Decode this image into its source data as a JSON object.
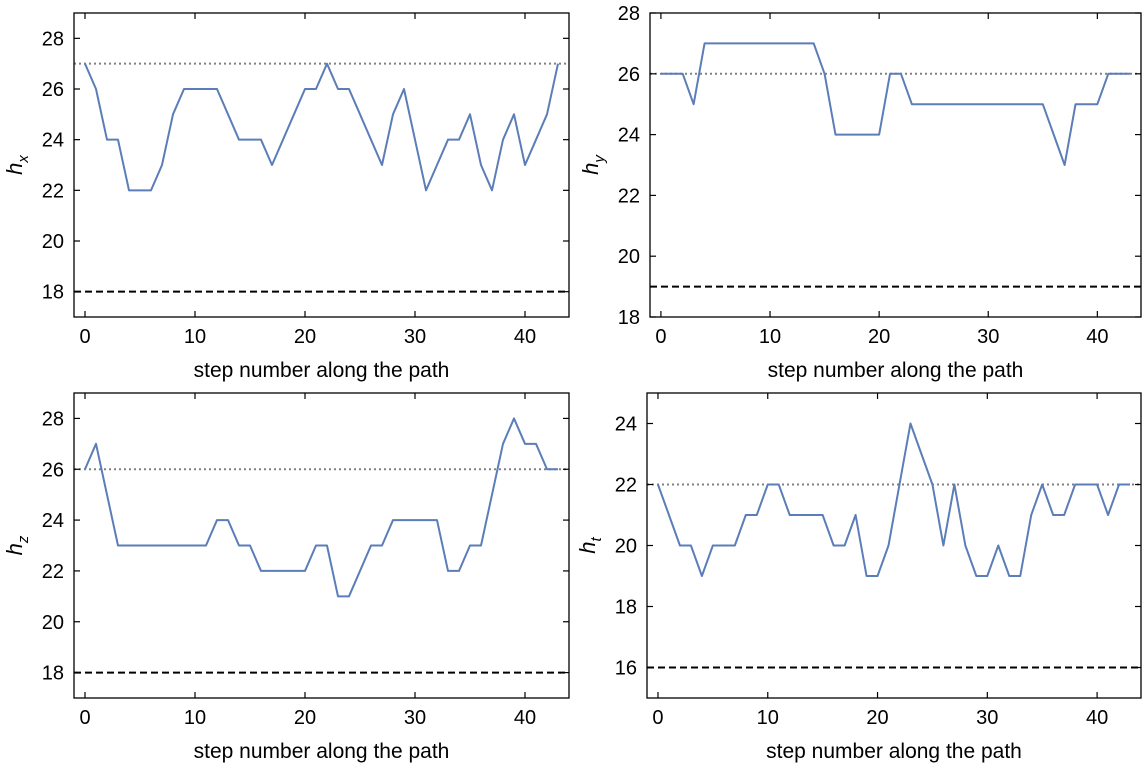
{
  "chart_data": [
    {
      "type": "line",
      "ylabel": "h",
      "ylabel_sub": "x",
      "xlabel": "step number along the path",
      "xlim": [
        -1,
        44
      ],
      "ylim": [
        17,
        29
      ],
      "xticks": [
        0,
        10,
        20,
        30,
        40
      ],
      "yticks": [
        18,
        20,
        22,
        24,
        26,
        28
      ],
      "dotted_ref": 27,
      "dashed_ref": 18,
      "line_color": "#5b7db8",
      "values": [
        27,
        26,
        24,
        24,
        22,
        22,
        22,
        23,
        25,
        26,
        26,
        26,
        26,
        25,
        24,
        24,
        24,
        23,
        24,
        25,
        26,
        26,
        27,
        26,
        26,
        25,
        24,
        23,
        25,
        26,
        24,
        22,
        23,
        24,
        24,
        25,
        23,
        22,
        24,
        25,
        23,
        24,
        25,
        27
      ]
    },
    {
      "type": "line",
      "ylabel": "h",
      "ylabel_sub": "y",
      "xlabel": "step number along the path",
      "xlim": [
        -1,
        44
      ],
      "ylim": [
        18,
        28
      ],
      "xticks": [
        0,
        10,
        20,
        30,
        40
      ],
      "yticks": [
        18,
        20,
        22,
        24,
        26,
        28
      ],
      "dotted_ref": 26,
      "dashed_ref": 19,
      "line_color": "#5b7db8",
      "values": [
        26,
        26,
        26,
        25,
        27,
        27,
        27,
        27,
        27,
        27,
        27,
        27,
        27,
        27,
        27,
        26,
        24,
        24,
        24,
        24,
        24,
        26,
        26,
        25,
        25,
        25,
        25,
        25,
        25,
        25,
        25,
        25,
        25,
        25,
        25,
        25,
        24,
        23,
        25,
        25,
        25,
        26,
        26,
        26
      ]
    },
    {
      "type": "line",
      "ylabel": "h",
      "ylabel_sub": "z",
      "xlabel": "step number along the path",
      "xlim": [
        -1,
        44
      ],
      "ylim": [
        17,
        29
      ],
      "xticks": [
        0,
        10,
        20,
        30,
        40
      ],
      "yticks": [
        18,
        20,
        22,
        24,
        26,
        28
      ],
      "dotted_ref": 26,
      "dashed_ref": 18,
      "line_color": "#5b7db8",
      "values": [
        26,
        27,
        25,
        23,
        23,
        23,
        23,
        23,
        23,
        23,
        23,
        23,
        24,
        24,
        23,
        23,
        22,
        22,
        22,
        22,
        22,
        23,
        23,
        21,
        21,
        22,
        23,
        23,
        24,
        24,
        24,
        24,
        24,
        22,
        22,
        23,
        23,
        25,
        27,
        28,
        27,
        27,
        26,
        26
      ]
    },
    {
      "type": "line",
      "ylabel": "h",
      "ylabel_sub": "t",
      "xlabel": "step number along the path",
      "xlim": [
        -1,
        44
      ],
      "ylim": [
        15,
        25
      ],
      "xticks": [
        0,
        10,
        20,
        30,
        40
      ],
      "yticks": [
        16,
        18,
        20,
        22,
        24
      ],
      "dotted_ref": 22,
      "dashed_ref": 16,
      "line_color": "#5b7db8",
      "values": [
        22,
        21,
        20,
        20,
        19,
        20,
        20,
        20,
        21,
        21,
        22,
        22,
        21,
        21,
        21,
        21,
        20,
        20,
        21,
        19,
        19,
        20,
        22,
        24,
        23,
        22,
        20,
        22,
        20,
        19,
        19,
        20,
        19,
        19,
        21,
        22,
        21,
        21,
        22,
        22,
        22,
        21,
        22,
        22
      ]
    }
  ]
}
